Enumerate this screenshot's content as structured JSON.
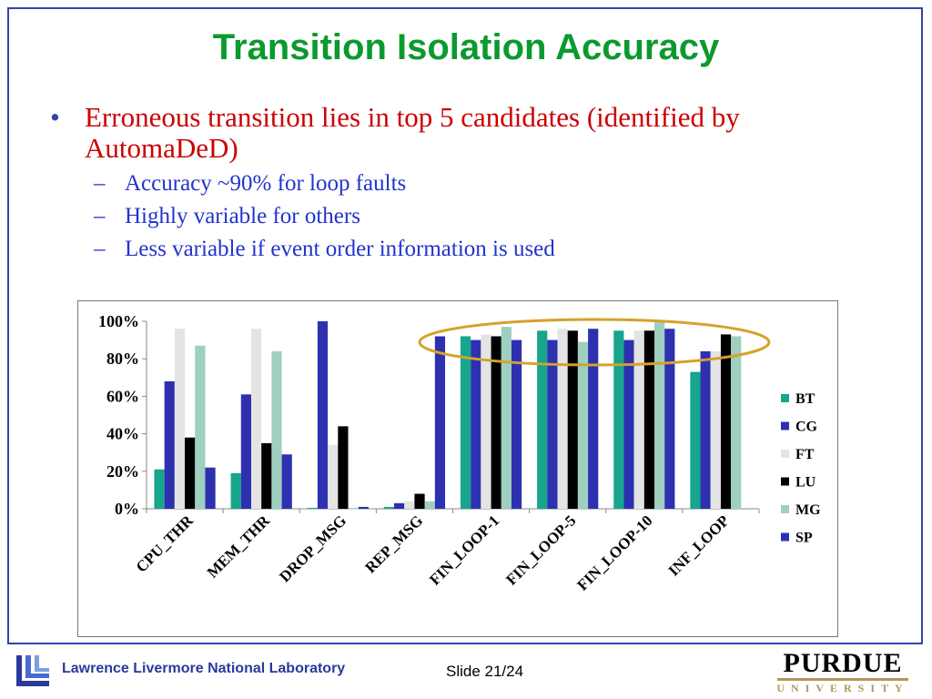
{
  "slide": {
    "title": "Transition Isolation Accuracy",
    "bullet": "Erroneous transition lies in top 5 candidates (identified by AutomaDeD)",
    "bullet_marker": "•",
    "sub_marker": "–",
    "sub_bullets": [
      "Accuracy ~90% for loop faults",
      "Highly variable for others",
      "Less variable if event order information is used"
    ]
  },
  "footer": {
    "lab": "Lawrence Livermore National Laboratory",
    "slide_number": "Slide 21/24",
    "purdue_word": "PURDUE",
    "purdue_sub": "UNIVERSITY"
  },
  "colors": {
    "title": "#0a9a2e",
    "bullet": "#cc0000",
    "sub_bullet": "#2233cc",
    "highlight_ellipse": "#d4a22a"
  },
  "chart_data": {
    "type": "bar",
    "categories": [
      "CPU_THR",
      "MEM_THR",
      "DROP_MSG",
      "REP_MSG",
      "FIN_LOOP-1",
      "FIN_LOOP-5",
      "FIN_LOOP-10",
      "INF_LOOP"
    ],
    "series": [
      {
        "name": "BT",
        "color": "#17a58c",
        "values": [
          21,
          19,
          0.5,
          1,
          92,
          95,
          95,
          73
        ]
      },
      {
        "name": "CG",
        "color": "#2d31b0",
        "values": [
          68,
          61,
          100,
          3,
          90,
          90,
          90,
          84
        ]
      },
      {
        "name": "FT",
        "color": "#e4e4e4",
        "values": [
          96,
          96,
          34,
          4,
          93,
          96,
          95,
          84
        ]
      },
      {
        "name": "LU",
        "color": "#000000",
        "values": [
          38,
          35,
          44,
          8,
          92,
          95,
          95,
          93
        ]
      },
      {
        "name": "MG",
        "color": "#9ecfbf",
        "values": [
          87,
          84,
          0,
          4,
          97,
          89,
          100,
          92
        ]
      },
      {
        "name": "SP",
        "color": "#2d31b0",
        "values": [
          22,
          29,
          1,
          92,
          90,
          96,
          96,
          null
        ]
      }
    ],
    "yticks": [
      "0%",
      "20%",
      "40%",
      "60%",
      "80%",
      "100%"
    ],
    "ylim": [
      0,
      100
    ],
    "legend": "right",
    "grid": false
  }
}
